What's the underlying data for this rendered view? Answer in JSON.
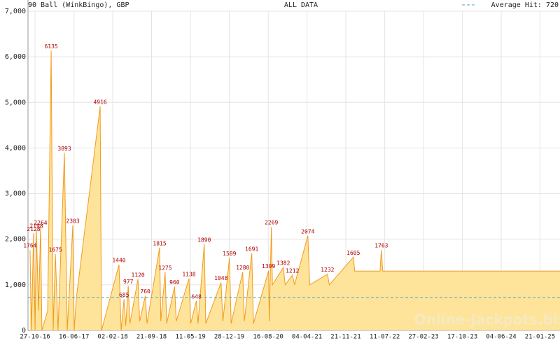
{
  "chart_data": {
    "type": "area",
    "title": "90 Ball (WinkBingo), GBP",
    "subtitle": "ALL DATA",
    "watermark": "Online-Jackpots.biz",
    "reference_line": {
      "label": "Average Hit:",
      "value": 720,
      "color": "#4aa3c8"
    },
    "xlim": [
      "15-09-16",
      "20-05-25"
    ],
    "xticks": [
      "27-10-16",
      "16-06-17",
      "02-02-18",
      "21-09-18",
      "11-05-19",
      "28-12-19",
      "16-08-20",
      "04-04-21",
      "21-11-21",
      "11-07-22",
      "27-02-23",
      "17-10-23",
      "04-06-24",
      "21-01-25"
    ],
    "ylim": [
      0,
      7000
    ],
    "yticks": [
      0,
      {
        "value": 1000,
        "label": "1,000"
      },
      {
        "value": 2000,
        "label": "2,000"
      },
      {
        "value": 3000,
        "label": "3,000"
      },
      {
        "value": 4000,
        "label": "4,000"
      },
      {
        "value": 5000,
        "label": "5,000"
      },
      {
        "value": 6000,
        "label": "6,000"
      },
      {
        "value": 7000,
        "label": "7,000"
      }
    ],
    "grid": true,
    "series": [
      {
        "name": "90 Ball (WinkBingo), GBP",
        "color": "#f39a1c",
        "fill": "#fde49a",
        "label_color": "#b00000",
        "x": [
          "27-09-16",
          "06-10-16",
          "18-10-16",
          "27-10-16",
          "04-11-16",
          "17-11-16",
          "29-11-16",
          "07-12-16",
          "10-01-17",
          "31-01-17",
          "12-02-17",
          "25-02-17",
          "13-03-17",
          "20-04-17",
          "07-05-17",
          "09-06-17",
          "17-06-17",
          "30-06-17",
          "19-11-17",
          "27-11-17",
          "11-03-18",
          "24-03-18",
          "10-04-18",
          "20-04-18",
          "05-05-18",
          "15-05-18",
          "02-07-18",
          "12-07-18",
          "15-08-18",
          "25-08-18",
          "08-11-18",
          "15-11-18",
          "11-12-18",
          "20-12-18",
          "05-02-19",
          "15-02-19",
          "02-05-19",
          "12-05-19",
          "15-06-19",
          "25-06-19",
          "01-08-19",
          "10-08-19",
          "09-11-19",
          "20-11-19",
          "29-12-19",
          "08-01-20",
          "17-03-20",
          "27-03-20",
          "10-05-20",
          "20-05-20",
          "18-08-20",
          "22-08-20",
          "04-09-20",
          "10-09-20",
          "14-11-20",
          "25-11-20",
          "07-01-21",
          "20-01-21",
          "09-04-21",
          "20-04-21",
          "04-08-21",
          "15-08-21",
          "05-01-22",
          "13-01-22",
          "13-06-22",
          "21-06-22",
          "29-06-22",
          "20-05-25"
        ],
        "values": [
          1764,
          0,
          2128,
          0,
          2198,
          439,
          2264,
          0,
          436,
          6135,
          0,
          1675,
          0,
          3893,
          0,
          2303,
          0,
          717,
          4916,
          0,
          1440,
          0,
          685,
          100,
          977,
          150,
          1120,
          200,
          760,
          150,
          1815,
          200,
          1275,
          150,
          960,
          200,
          1138,
          150,
          648,
          150,
          1890,
          150,
          1048,
          200,
          1589,
          150,
          1280,
          200,
          1691,
          150,
          1309,
          200,
          2269,
          1000,
          1382,
          1000,
          1212,
          1000,
          2074,
          1000,
          1232,
          1000,
          1605,
          1300,
          1300,
          1763,
          1300,
          1300
        ]
      }
    ]
  }
}
